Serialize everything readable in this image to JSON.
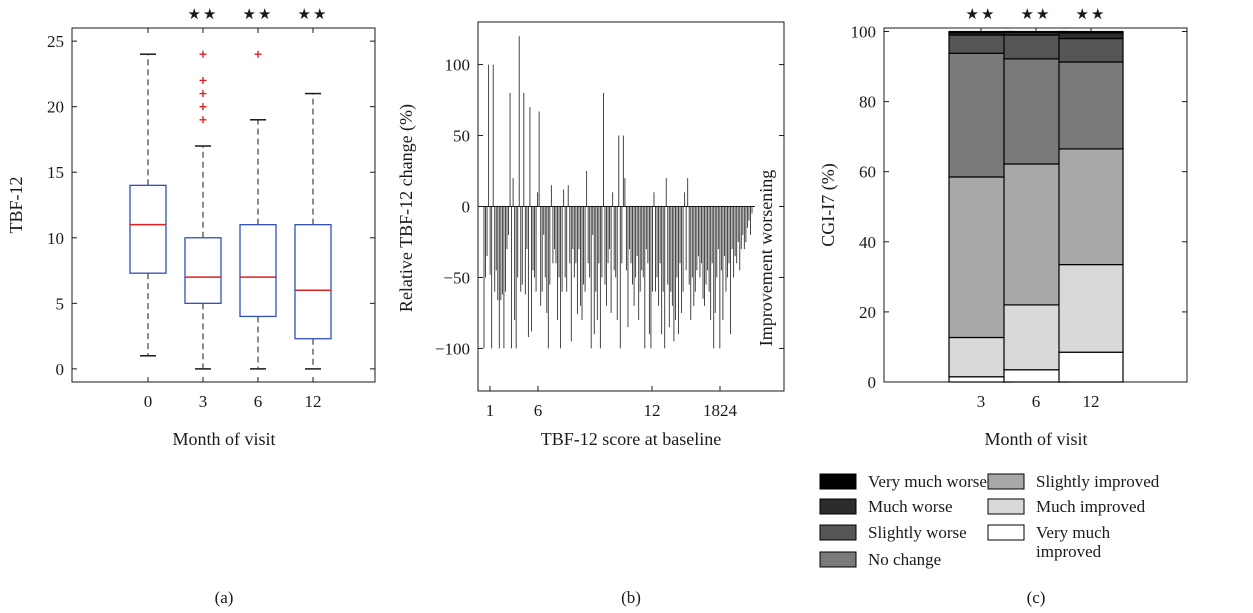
{
  "panels": {
    "a": {
      "caption": "(a)"
    },
    "b": {
      "caption": "(b)"
    },
    "c": {
      "caption": "(c)"
    }
  },
  "colors": {
    "box_edge": "#3050b8",
    "median": "#e02020",
    "outlier": "#e02020",
    "whisker": "#1a1a1a",
    "bar_fill": "#333333",
    "stacked": [
      "#ffffff",
      "#d9d9d9",
      "#a8a8a8",
      "#7a7a7a",
      "#555555",
      "#2c2c2c",
      "#000000"
    ]
  },
  "chart_data": [
    {
      "id": "a",
      "type": "boxplot",
      "xlabel": "Month of visit",
      "ylabel": "TBF-12",
      "categories": [
        "0",
        "3",
        "6",
        "12"
      ],
      "ylim": [
        -1,
        26
      ],
      "yticks": [
        0,
        5,
        10,
        15,
        20,
        25
      ],
      "boxes": [
        {
          "category": "0",
          "whisker_low": 1,
          "q1": 7.3,
          "median": 11,
          "q3": 14,
          "whisker_high": 24,
          "outliers": []
        },
        {
          "category": "3",
          "whisker_low": 0,
          "q1": 5,
          "median": 7,
          "q3": 10,
          "whisker_high": 17,
          "outliers": [
            19,
            20,
            21,
            22,
            24
          ]
        },
        {
          "category": "6",
          "whisker_low": 0,
          "q1": 4,
          "median": 7,
          "q3": 11,
          "whisker_high": 19,
          "outliers": [
            24
          ]
        },
        {
          "category": "12",
          "whisker_low": 0,
          "q1": 2.3,
          "median": 6,
          "q3": 11,
          "whisker_high": 21,
          "outliers": []
        }
      ],
      "significance": [
        {
          "category": "3",
          "label": "★★"
        },
        {
          "category": "6",
          "label": "★★"
        },
        {
          "category": "12",
          "label": "★★"
        }
      ],
      "grid": false
    },
    {
      "id": "b",
      "type": "bar",
      "xlabel": "TBF-12 score at baseline",
      "ylabel": "Relative TBF-12 change (%)",
      "side_label": "Improvement worsening",
      "xticks": [
        "1",
        "6",
        "12",
        "1824"
      ],
      "ylim": [
        -130,
        130
      ],
      "yticks": [
        -100,
        -50,
        0,
        50,
        100
      ],
      "values": [
        -100,
        -50,
        -35,
        100,
        -48,
        -100,
        100,
        -60,
        -45,
        -66,
        -100,
        -66,
        -62,
        -100,
        -60,
        -30,
        -20,
        80,
        -100,
        20,
        -80,
        -100,
        -50,
        120,
        -60,
        -55,
        80,
        -62,
        -30,
        -92,
        70,
        -88,
        -45,
        -50,
        -60,
        10,
        67,
        -70,
        -60,
        -20,
        -50,
        -75,
        -100,
        -55,
        15,
        -40,
        -30,
        -40,
        -80,
        -50,
        -100,
        -60,
        12,
        -50,
        -60,
        15,
        -40,
        -95,
        -30,
        -50,
        -40,
        -76,
        -30,
        -70,
        -80,
        -55,
        -60,
        25,
        -40,
        -50,
        -100,
        -20,
        -90,
        -60,
        -80,
        -40,
        -100,
        -50,
        80,
        -55,
        -70,
        -40,
        -30,
        -75,
        10,
        -45,
        -50,
        -80,
        50,
        -100,
        -40,
        50,
        20,
        -45,
        -85,
        -30,
        -40,
        -55,
        -70,
        -50,
        -35,
        -80,
        -60,
        -45,
        -50,
        -100,
        -30,
        -40,
        -90,
        -100,
        -60,
        10,
        -60,
        -50,
        -70,
        -40,
        -90,
        -60,
        -100,
        20,
        -55,
        -85,
        -60,
        -70,
        -95,
        -80,
        -50,
        -90,
        -40,
        -75,
        -60,
        10,
        -45,
        20,
        -55,
        -80,
        -50,
        -70,
        -60,
        -45,
        -35,
        -50,
        -40,
        -65,
        -70,
        -55,
        -45,
        -60,
        -80,
        -40,
        -100,
        -75,
        -50,
        -30,
        -100,
        -45,
        -80,
        -35,
        -60,
        -50,
        -40,
        -90,
        -30,
        -50,
        -35,
        -40,
        -25,
        -45,
        -30,
        -20,
        -30,
        -25,
        -15,
        -10,
        -20,
        -5
      ],
      "grid": false
    },
    {
      "id": "c",
      "type": "stacked_bar",
      "xlabel": "Month of visit",
      "ylabel": "CGI-I7 (%)",
      "categories": [
        "3",
        "6",
        "12"
      ],
      "ylim": [
        0,
        101
      ],
      "yticks": [
        0,
        20,
        40,
        60,
        80,
        100
      ],
      "series": [
        {
          "name": "Very much improved",
          "values": [
            1.5,
            3.5,
            8.5
          ]
        },
        {
          "name": "Much improved",
          "values": [
            11.2,
            18.5,
            25.0
          ]
        },
        {
          "name": "Slightly improved",
          "values": [
            45.8,
            40.2,
            33.0
          ]
        },
        {
          "name": "No change",
          "values": [
            35.3,
            30.0,
            24.8
          ]
        },
        {
          "name": "Slightly worse",
          "values": [
            5.2,
            6.8,
            6.7
          ]
        },
        {
          "name": "Much worse",
          "values": [
            0.6,
            0.8,
            1.6
          ]
        },
        {
          "name": "Very much worse",
          "values": [
            0.4,
            0.2,
            0.4
          ]
        }
      ],
      "significance": [
        {
          "category": "3",
          "label": "★★"
        },
        {
          "category": "6",
          "label": "★★"
        },
        {
          "category": "12",
          "label": "★★"
        }
      ],
      "legend": [
        [
          "Very much worse",
          "Much worse",
          "Slightly worse",
          "No change"
        ],
        [
          "Slightly improved",
          "Much improved",
          "Very much improved"
        ]
      ],
      "legend_placement": "bottom",
      "grid": false
    }
  ]
}
